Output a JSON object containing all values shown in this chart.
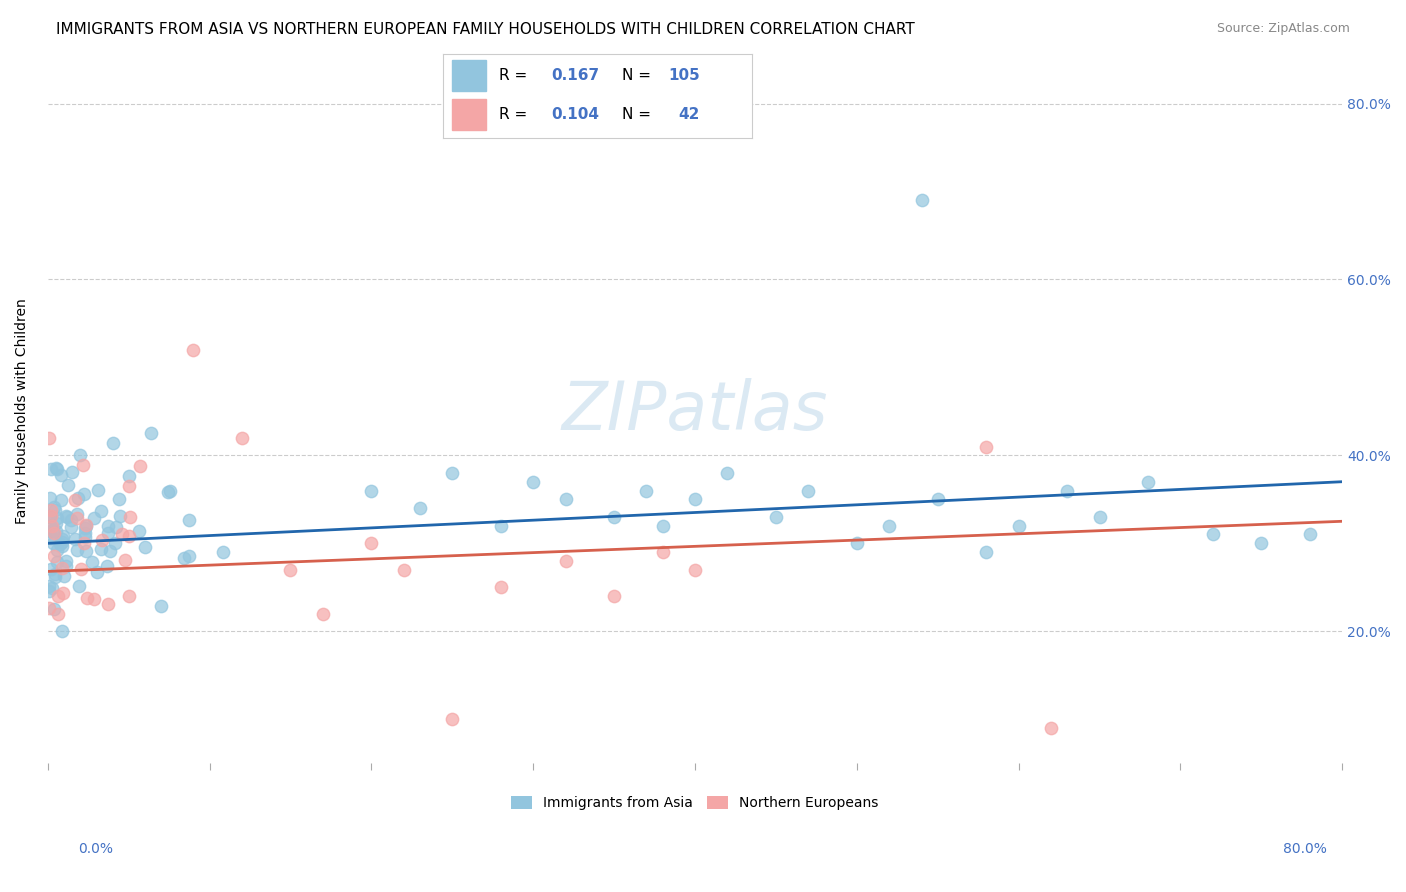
{
  "title": "IMMIGRANTS FROM ASIA VS NORTHERN EUROPEAN FAMILY HOUSEHOLDS WITH CHILDREN CORRELATION CHART",
  "source": "Source: ZipAtlas.com",
  "ylabel": "Family Households with Children",
  "watermark": "ZIPatlas",
  "xlim": [
    0.0,
    0.8
  ],
  "ylim": [
    0.05,
    0.85
  ],
  "yticks": [
    0.2,
    0.4,
    0.6,
    0.8
  ],
  "asia_R": "0.167",
  "asia_N": "105",
  "europe_R": "0.104",
  "europe_N": "42",
  "asia_color": "#92c5de",
  "europe_color": "#f4a6a6",
  "asia_line_color": "#2166ac",
  "europe_line_color": "#d6604d",
  "background_color": "#ffffff",
  "grid_color": "#cccccc",
  "blue_text_color": "#4472c4",
  "title_fontsize": 11,
  "source_fontsize": 9,
  "axis_label_fontsize": 10,
  "tick_fontsize": 10,
  "legend_fontsize": 11,
  "asia_line_y0": 0.3,
  "asia_line_y1": 0.37,
  "europe_line_y0": 0.268,
  "europe_line_y1": 0.325
}
